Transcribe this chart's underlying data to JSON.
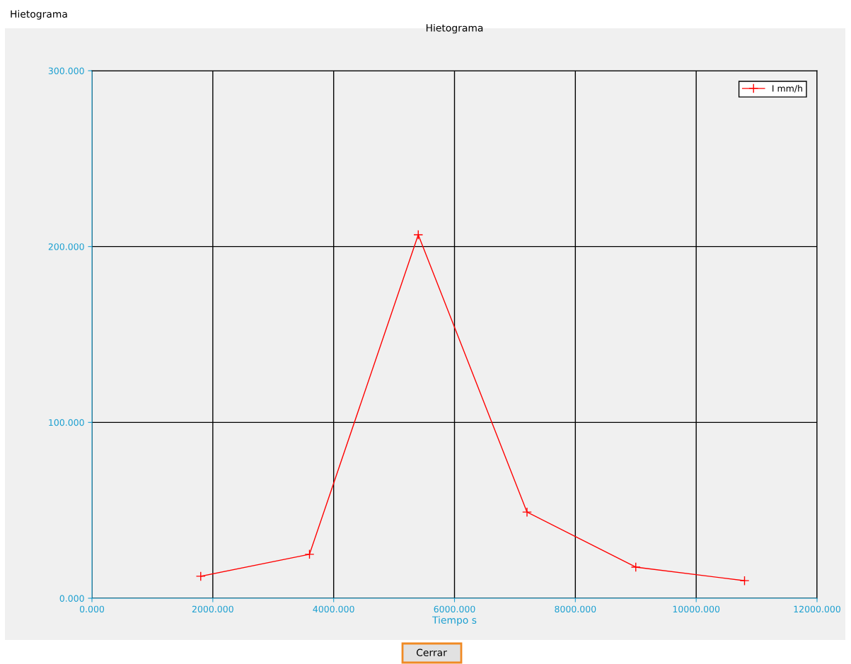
{
  "chart_data": {
    "type": "line",
    "title": "Hietograma",
    "xlabel": "Tiempo s",
    "annotations": [
      "Hietograma",
      "Cerrar"
    ],
    "x": [
      1800,
      3600,
      5400,
      7200,
      9000,
      10800
    ],
    "series": [
      {
        "name": "I mm/h",
        "color": "#ff0000",
        "values": [
          12.5,
          25,
          206.7,
          49,
          17.7,
          10
        ]
      }
    ],
    "xlim": [
      0,
      12000
    ],
    "ylim": [
      0,
      300
    ],
    "xticks": [
      {
        "value": 0,
        "label": "0.000"
      },
      {
        "value": 2000,
        "label": "2000.000"
      },
      {
        "value": 4000,
        "label": "4000.000"
      },
      {
        "value": 6000,
        "label": "6000.000"
      },
      {
        "value": 8000,
        "label": "8000.000"
      },
      {
        "value": 10000,
        "label": "10000.000"
      },
      {
        "value": 12000,
        "label": "12000.000"
      }
    ],
    "yticks": [
      {
        "value": 0,
        "label": "0.000"
      },
      {
        "value": 100,
        "label": "100.000"
      },
      {
        "value": 200,
        "label": "200.000"
      },
      {
        "value": 300,
        "label": "300.000"
      }
    ],
    "grid": true,
    "legend": "top right",
    "marker": "cross",
    "line_style": "solid"
  }
}
